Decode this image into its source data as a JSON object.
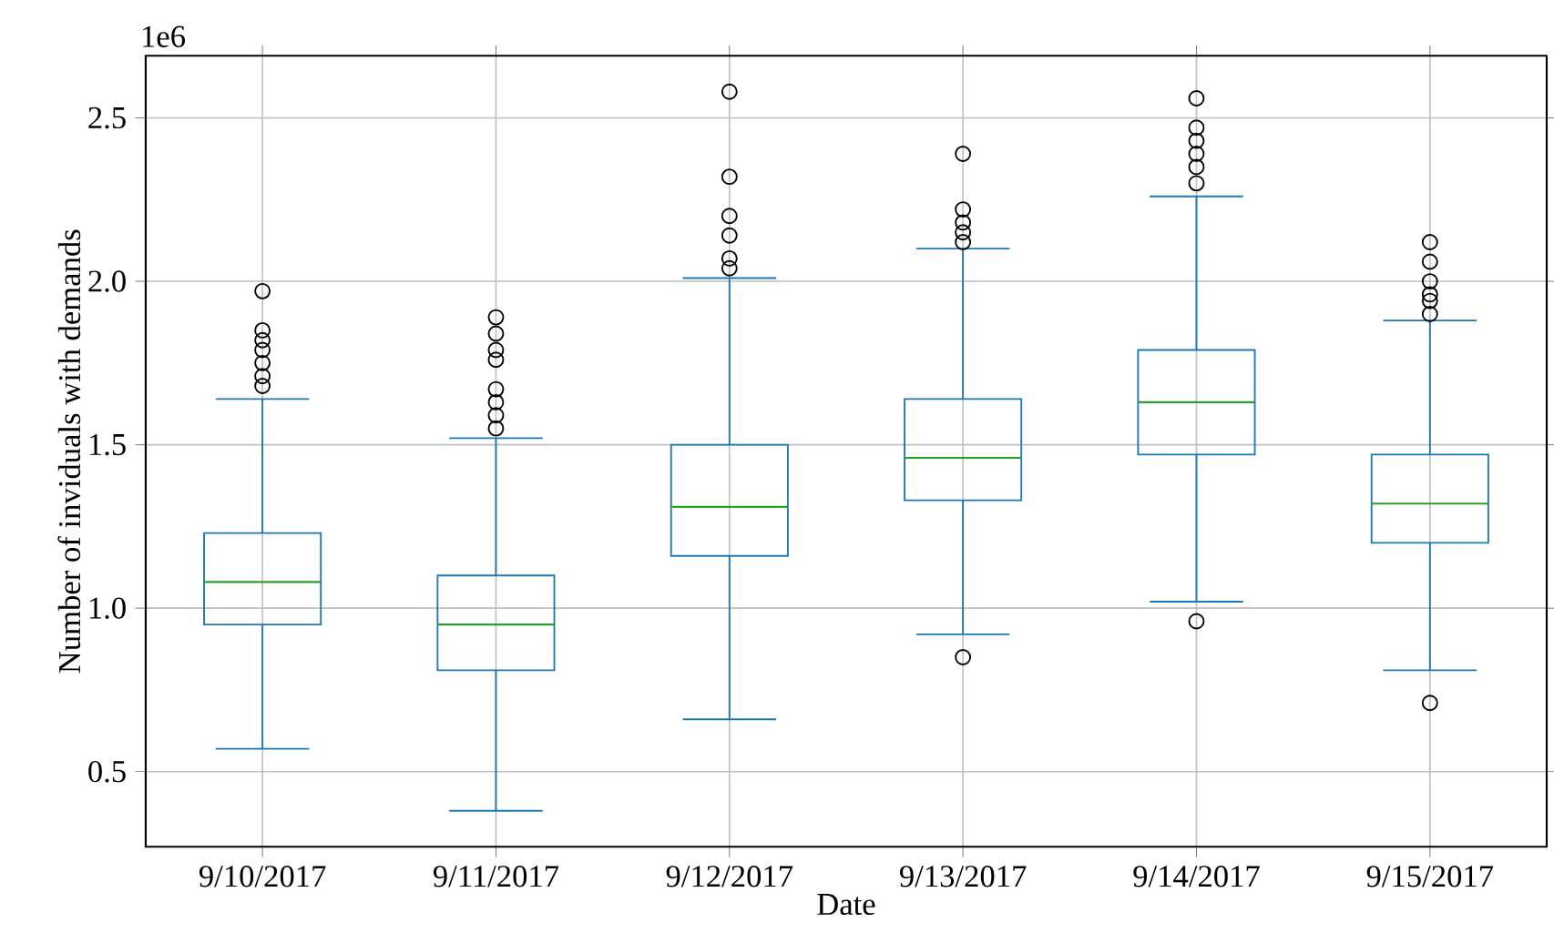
{
  "chart_data": {
    "type": "box",
    "xlabel": "Date",
    "ylabel": "Number of inviduals with demands",
    "annotations": [
      "1e6"
    ],
    "categories": [
      "9/10/2017",
      "9/11/2017",
      "9/12/2017",
      "9/13/2017",
      "9/14/2017",
      "9/15/2017"
    ],
    "series": [
      {
        "color": "#1f77b4",
        "boxes": [
          {
            "low": 0.57,
            "q1": 0.95,
            "median": 1.08,
            "q3": 1.23,
            "high": 1.64,
            "outliers": [
              1.97,
              1.85,
              1.82,
              1.79,
              1.75,
              1.71,
              1.68
            ]
          },
          {
            "low": 0.38,
            "q1": 0.81,
            "median": 0.95,
            "q3": 1.1,
            "high": 1.52,
            "outliers": [
              1.89,
              1.84,
              1.79,
              1.76,
              1.67,
              1.63,
              1.59,
              1.55
            ]
          },
          {
            "low": 0.66,
            "q1": 1.16,
            "median": 1.31,
            "q3": 1.5,
            "high": 2.01,
            "outliers": [
              2.58,
              2.32,
              2.2,
              2.14,
              2.07,
              2.04
            ]
          },
          {
            "low": 0.92,
            "q1": 1.33,
            "median": 1.46,
            "q3": 1.64,
            "high": 2.1,
            "outliers": [
              0.85,
              2.39,
              2.22,
              2.18,
              2.15,
              2.12
            ]
          },
          {
            "low": 1.02,
            "q1": 1.47,
            "median": 1.63,
            "q3": 1.79,
            "high": 2.26,
            "outliers": [
              0.96,
              2.56,
              2.47,
              2.43,
              2.39,
              2.35,
              2.3
            ]
          },
          {
            "low": 0.81,
            "q1": 1.2,
            "median": 1.32,
            "q3": 1.47,
            "high": 1.88,
            "outliers": [
              0.71,
              2.12,
              2.06,
              2.0,
              1.96,
              1.94,
              1.9
            ]
          }
        ]
      }
    ],
    "ylim": [
      0.27,
      2.69
    ],
    "yticks": [
      0.5,
      {
        "value": 1,
        "label": "1.0"
      },
      1.5,
      {
        "value": 2,
        "label": "2.0"
      },
      2.5
    ],
    "grid": true
  }
}
